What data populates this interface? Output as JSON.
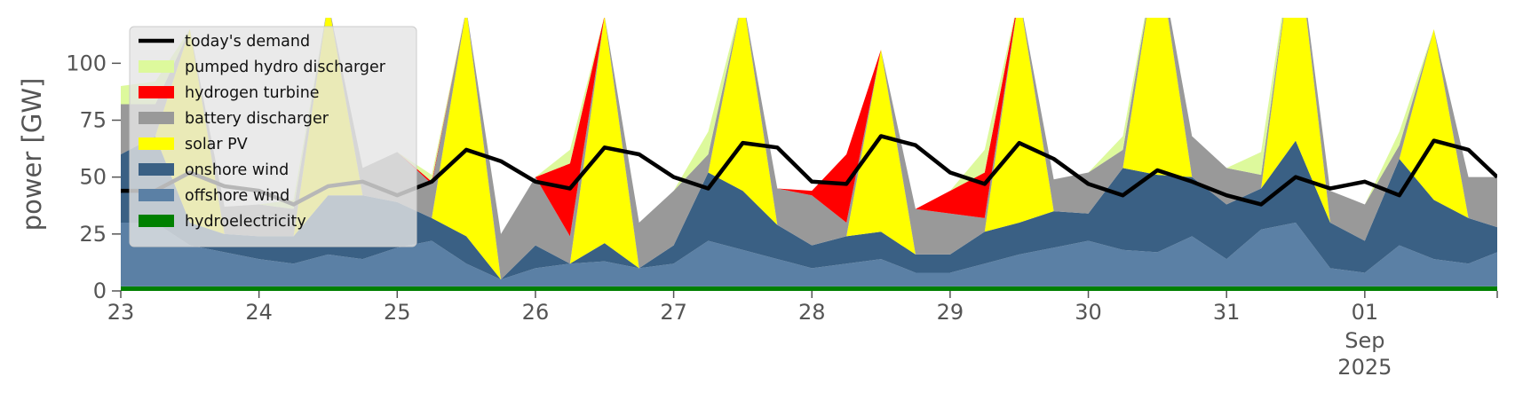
{
  "chart_data": {
    "type": "area",
    "ylabel": "power [GW]",
    "ylim": [
      0,
      120
    ],
    "xlim": [
      "2025-08-23T00:00",
      "2025-09-01T23:00"
    ],
    "yticks": [
      0,
      25,
      50,
      75,
      100
    ],
    "xticks": [
      {
        "x": "2025-08-23",
        "label": "23"
      },
      {
        "x": "2025-08-24",
        "label": "24"
      },
      {
        "x": "2025-08-25",
        "label": "25"
      },
      {
        "x": "2025-08-26",
        "label": "26"
      },
      {
        "x": "2025-08-27",
        "label": "27"
      },
      {
        "x": "2025-08-28",
        "label": "28"
      },
      {
        "x": "2025-08-29",
        "label": "29"
      },
      {
        "x": "2025-08-30",
        "label": "30"
      },
      {
        "x": "2025-08-31",
        "label": "31"
      },
      {
        "x": "2025-09-01",
        "label": "01",
        "sublabel": "Sep",
        "subsublabel": "2025"
      }
    ],
    "grid": false,
    "legend_position": "top-left",
    "x": [
      "2025-08-23T00:00",
      "2025-08-23T06:00",
      "2025-08-23T12:00",
      "2025-08-23T18:00",
      "2025-08-24T00:00",
      "2025-08-24T06:00",
      "2025-08-24T12:00",
      "2025-08-24T18:00",
      "2025-08-25T00:00",
      "2025-08-25T06:00",
      "2025-08-25T12:00",
      "2025-08-25T18:00",
      "2025-08-26T00:00",
      "2025-08-26T06:00",
      "2025-08-26T12:00",
      "2025-08-26T18:00",
      "2025-08-27T00:00",
      "2025-08-27T06:00",
      "2025-08-27T12:00",
      "2025-08-27T18:00",
      "2025-08-28T00:00",
      "2025-08-28T06:00",
      "2025-08-28T12:00",
      "2025-08-28T18:00",
      "2025-08-29T00:00",
      "2025-08-29T06:00",
      "2025-08-29T12:00",
      "2025-08-29T18:00",
      "2025-08-30T00:00",
      "2025-08-30T06:00",
      "2025-08-30T12:00",
      "2025-08-30T18:00",
      "2025-08-31T00:00",
      "2025-08-31T06:00",
      "2025-08-31T12:00",
      "2025-08-31T18:00",
      "2025-09-01T00:00",
      "2025-09-01T06:00",
      "2025-09-01T12:00",
      "2025-09-01T18:00",
      "2025-09-01T23:00"
    ],
    "series": [
      {
        "name": "hydroelectricity",
        "color": "#008000",
        "values": [
          2,
          2,
          2,
          2,
          2,
          2,
          2,
          2,
          2,
          2,
          2,
          2,
          2,
          2,
          2,
          2,
          2,
          2,
          2,
          2,
          2,
          2,
          2,
          2,
          2,
          2,
          2,
          2,
          2,
          2,
          2,
          2,
          2,
          2,
          2,
          2,
          2,
          2,
          2,
          2,
          2
        ]
      },
      {
        "name": "offshore wind",
        "color": "#5b80a5",
        "values": [
          28,
          28,
          18,
          15,
          12,
          10,
          14,
          12,
          17,
          20,
          10,
          3,
          8,
          10,
          11,
          8,
          10,
          20,
          16,
          12,
          8,
          10,
          12,
          6,
          6,
          10,
          14,
          17,
          20,
          16,
          15,
          22,
          12,
          25,
          28,
          8,
          6,
          18,
          12,
          10,
          15
        ]
      },
      {
        "name": "onshore wind",
        "color": "#3a6084",
        "values": [
          30,
          38,
          10,
          8,
          10,
          12,
          26,
          28,
          20,
          10,
          12,
          0,
          10,
          0,
          8,
          0,
          8,
          30,
          26,
          15,
          10,
          12,
          12,
          8,
          8,
          14,
          14,
          16,
          12,
          36,
          34,
          26,
          24,
          18,
          36,
          20,
          14,
          38,
          26,
          20,
          11
        ]
      },
      {
        "name": "solar PV",
        "color": "#ffff00",
        "values": [
          0,
          0,
          85,
          0,
          0,
          0,
          85,
          0,
          0,
          0,
          100,
          0,
          0,
          0,
          100,
          0,
          0,
          0,
          85,
          0,
          0,
          0,
          80,
          0,
          0,
          0,
          100,
          0,
          0,
          0,
          100,
          0,
          0,
          0,
          95,
          0,
          0,
          0,
          75,
          0,
          0
        ]
      },
      {
        "name": "battery discharger",
        "color": "#999999",
        "values": [
          22,
          14,
          0,
          12,
          14,
          12,
          0,
          12,
          22,
          15,
          0,
          20,
          30,
          12,
          0,
          20,
          24,
          8,
          0,
          16,
          22,
          6,
          0,
          20,
          18,
          6,
          0,
          14,
          18,
          8,
          0,
          18,
          16,
          6,
          0,
          14,
          16,
          6,
          0,
          18,
          22
        ]
      },
      {
        "name": "hydrogen turbine",
        "color": "#ff0000",
        "values": [
          0,
          0,
          0,
          0,
          0,
          0,
          0,
          0,
          0,
          1,
          0,
          0,
          0,
          32,
          0,
          0,
          0,
          0,
          0,
          0,
          2,
          30,
          0,
          0,
          10,
          20,
          0,
          0,
          0,
          0,
          0,
          0,
          0,
          0,
          0,
          0,
          0,
          0,
          0,
          0,
          0
        ]
      },
      {
        "name": "pumped hydro discharger",
        "color": "#ddf99c",
        "values": [
          8,
          10,
          0,
          0,
          0,
          4,
          0,
          0,
          0,
          3,
          0,
          0,
          0,
          6,
          0,
          0,
          0,
          10,
          0,
          0,
          0,
          0,
          0,
          0,
          0,
          10,
          0,
          0,
          0,
          6,
          0,
          0,
          0,
          10,
          0,
          0,
          0,
          6,
          0,
          0,
          0
        ]
      },
      {
        "name": "today's demand",
        "color": "#000000",
        "type": "line",
        "values": [
          44,
          44,
          52,
          46,
          44,
          38,
          46,
          48,
          42,
          48,
          62,
          57,
          48,
          45,
          63,
          60,
          50,
          45,
          65,
          63,
          48,
          47,
          68,
          64,
          52,
          47,
          65,
          58,
          47,
          42,
          53,
          48,
          42,
          38,
          50,
          45,
          48,
          42,
          66,
          62,
          50
        ]
      }
    ]
  }
}
